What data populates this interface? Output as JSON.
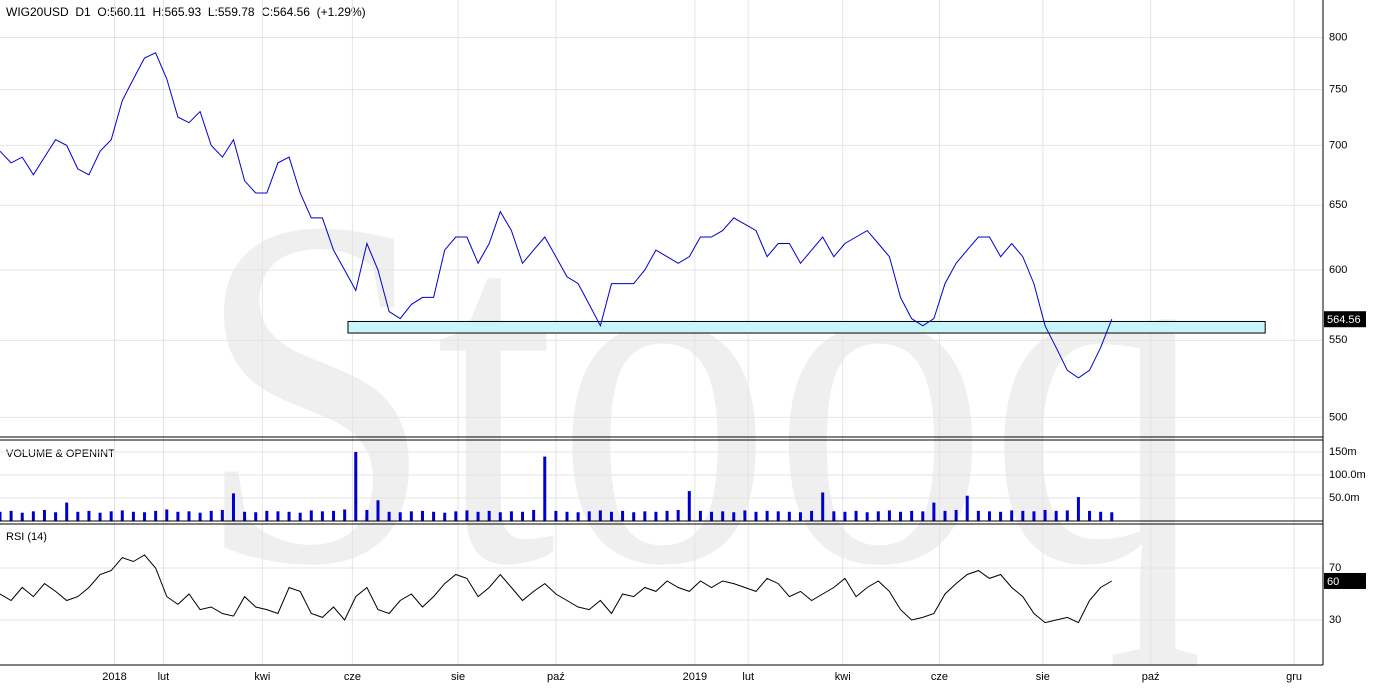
{
  "watermark": "Stooq",
  "chart_data": [
    {
      "type": "line",
      "title": "WIG20USD  D1  O:560.11  H:565.93  L:559.78  C:564.56  (+1.29%)",
      "color": "#0000cc",
      "log_scale": true,
      "grid": true,
      "xlim": [
        0,
        119
      ],
      "xticks": [
        {
          "value": 10.3,
          "label": "2018"
        },
        {
          "value": 14.7,
          "label": "lut"
        },
        {
          "value": 23.6,
          "label": "kwi"
        },
        {
          "value": 31.7,
          "label": "cze"
        },
        {
          "value": 41.2,
          "label": "sie"
        },
        {
          "value": 50.0,
          "label": "paź"
        },
        {
          "value": 62.5,
          "label": "2019"
        },
        {
          "value": 67.3,
          "label": "lut"
        },
        {
          "value": 75.8,
          "label": "kwi"
        },
        {
          "value": 84.5,
          "label": "cze"
        },
        {
          "value": 93.8,
          "label": "sie"
        },
        {
          "value": 103.5,
          "label": "paź"
        },
        {
          "value": 116.4,
          "label": "gru"
        }
      ],
      "ylim": [
        488,
        838
      ],
      "yticks": [
        500,
        550,
        600,
        650,
        700,
        750,
        800
      ],
      "zone": {
        "x": [
          31.3,
          113.8
        ],
        "y": [
          555,
          563
        ],
        "color": "#c8f5fa"
      },
      "x": [
        0,
        1,
        2,
        3,
        4,
        5,
        6,
        7,
        8,
        9,
        10,
        11,
        12,
        13,
        14,
        15,
        16,
        17,
        18,
        19,
        20,
        21,
        22,
        23,
        24,
        25,
        26,
        27,
        28,
        29,
        30,
        31,
        32,
        33,
        34,
        35,
        36,
        37,
        38,
        39,
        40,
        41,
        42,
        43,
        44,
        45,
        46,
        47,
        48,
        49,
        50,
        51,
        52,
        53,
        54,
        55,
        56,
        57,
        58,
        59,
        60,
        61,
        62,
        63,
        64,
        65,
        66,
        67,
        68,
        69,
        70,
        71,
        72,
        73,
        74,
        75,
        76,
        77,
        78,
        79,
        80,
        81,
        82,
        83,
        84,
        85,
        86,
        87,
        88,
        89,
        90,
        91,
        92,
        93,
        94,
        95,
        96,
        97,
        98,
        99,
        100
      ],
      "values": [
        695,
        685,
        690,
        675,
        690,
        705,
        700,
        680,
        675,
        695,
        705,
        740,
        760,
        780,
        785,
        760,
        725,
        720,
        730,
        700,
        690,
        705,
        670,
        660,
        660,
        685,
        690,
        660,
        640,
        640,
        615,
        600,
        585,
        620,
        600,
        570,
        565,
        575,
        580,
        580,
        615,
        625,
        625,
        605,
        620,
        645,
        630,
        605,
        615,
        625,
        610,
        595,
        590,
        575,
        560,
        590,
        590,
        590,
        600,
        615,
        610,
        605,
        610,
        625,
        625,
        630,
        640,
        635,
        630,
        610,
        620,
        620,
        605,
        615,
        625,
        610,
        620,
        625,
        630,
        620,
        610,
        580,
        565,
        560,
        565,
        590,
        605,
        615,
        625,
        625,
        610,
        620,
        610,
        590,
        560,
        545,
        530,
        525,
        530,
        545,
        564.56
      ]
    },
    {
      "type": "bar",
      "title": "VOLUME & OPENINT",
      "color": "#0000cc",
      "ylim": [
        0,
        176
      ],
      "yticks": [
        {
          "value": 50,
          "label": "50.0m"
        },
        {
          "value": 100,
          "label": "100.0m"
        },
        {
          "value": 150,
          "label": "150m"
        }
      ],
      "x": [
        0,
        1,
        2,
        3,
        4,
        5,
        6,
        7,
        8,
        9,
        10,
        11,
        12,
        13,
        14,
        15,
        16,
        17,
        18,
        19,
        20,
        21,
        22,
        23,
        24,
        25,
        26,
        27,
        28,
        29,
        30,
        31,
        32,
        33,
        34,
        35,
        36,
        37,
        38,
        39,
        40,
        41,
        42,
        43,
        44,
        45,
        46,
        47,
        48,
        49,
        50,
        51,
        52,
        53,
        54,
        55,
        56,
        57,
        58,
        59,
        60,
        61,
        62,
        63,
        64,
        65,
        66,
        67,
        68,
        69,
        70,
        71,
        72,
        73,
        74,
        75,
        76,
        77,
        78,
        79,
        80,
        81,
        82,
        83,
        84,
        85,
        86,
        87,
        88,
        89,
        90,
        91,
        92,
        93,
        94,
        95,
        96,
        97,
        98,
        99,
        100
      ],
      "values": [
        20,
        22,
        18,
        21,
        24,
        19,
        40,
        20,
        22,
        18,
        21,
        23,
        20,
        19,
        22,
        25,
        20,
        21,
        18,
        22,
        24,
        60,
        20,
        19,
        22,
        21,
        20,
        18,
        23,
        21,
        22,
        25,
        150,
        24,
        45,
        20,
        19,
        21,
        22,
        20,
        18,
        21,
        23,
        20,
        22,
        19,
        21,
        20,
        24,
        140,
        22,
        20,
        19,
        21,
        23,
        20,
        22,
        19,
        21,
        20,
        22,
        24,
        65,
        22,
        20,
        21,
        19,
        23,
        20,
        22,
        21,
        20,
        19,
        22,
        62,
        21,
        20,
        22,
        19,
        21,
        23,
        20,
        22,
        21,
        40,
        22,
        24,
        55,
        22,
        21,
        20,
        23,
        22,
        21,
        24,
        22,
        23,
        52,
        22,
        20,
        19
      ]
    },
    {
      "type": "line",
      "title": "RSI (14)",
      "color": "#000000",
      "ylim": [
        -4.6,
        103.8
      ],
      "yticks": [
        30,
        70
      ],
      "x": [
        0,
        1,
        2,
        3,
        4,
        5,
        6,
        7,
        8,
        9,
        10,
        11,
        12,
        13,
        14,
        15,
        16,
        17,
        18,
        19,
        20,
        21,
        22,
        23,
        24,
        25,
        26,
        27,
        28,
        29,
        30,
        31,
        32,
        33,
        34,
        35,
        36,
        37,
        38,
        39,
        40,
        41,
        42,
        43,
        44,
        45,
        46,
        47,
        48,
        49,
        50,
        51,
        52,
        53,
        54,
        55,
        56,
        57,
        58,
        59,
        60,
        61,
        62,
        63,
        64,
        65,
        66,
        67,
        68,
        69,
        70,
        71,
        72,
        73,
        74,
        75,
        76,
        77,
        78,
        79,
        80,
        81,
        82,
        83,
        84,
        85,
        86,
        87,
        88,
        89,
        90,
        91,
        92,
        93,
        94,
        95,
        96,
        97,
        98,
        99,
        100
      ],
      "values": [
        50,
        45,
        55,
        48,
        58,
        52,
        45,
        48,
        55,
        65,
        68,
        78,
        75,
        80,
        70,
        48,
        42,
        50,
        38,
        40,
        35,
        33,
        48,
        40,
        38,
        35,
        55,
        52,
        35,
        32,
        40,
        30,
        48,
        55,
        38,
        35,
        45,
        50,
        40,
        48,
        58,
        65,
        62,
        48,
        55,
        65,
        55,
        45,
        52,
        58,
        50,
        45,
        40,
        38,
        45,
        35,
        50,
        48,
        55,
        52,
        60,
        55,
        52,
        60,
        55,
        60,
        58,
        55,
        52,
        62,
        58,
        48,
        52,
        45,
        50,
        55,
        62,
        48,
        55,
        60,
        52,
        38,
        30,
        32,
        35,
        50,
        58,
        65,
        68,
        62,
        65,
        55,
        48,
        35,
        28,
        30,
        32,
        28,
        45,
        55,
        60
      ]
    }
  ]
}
